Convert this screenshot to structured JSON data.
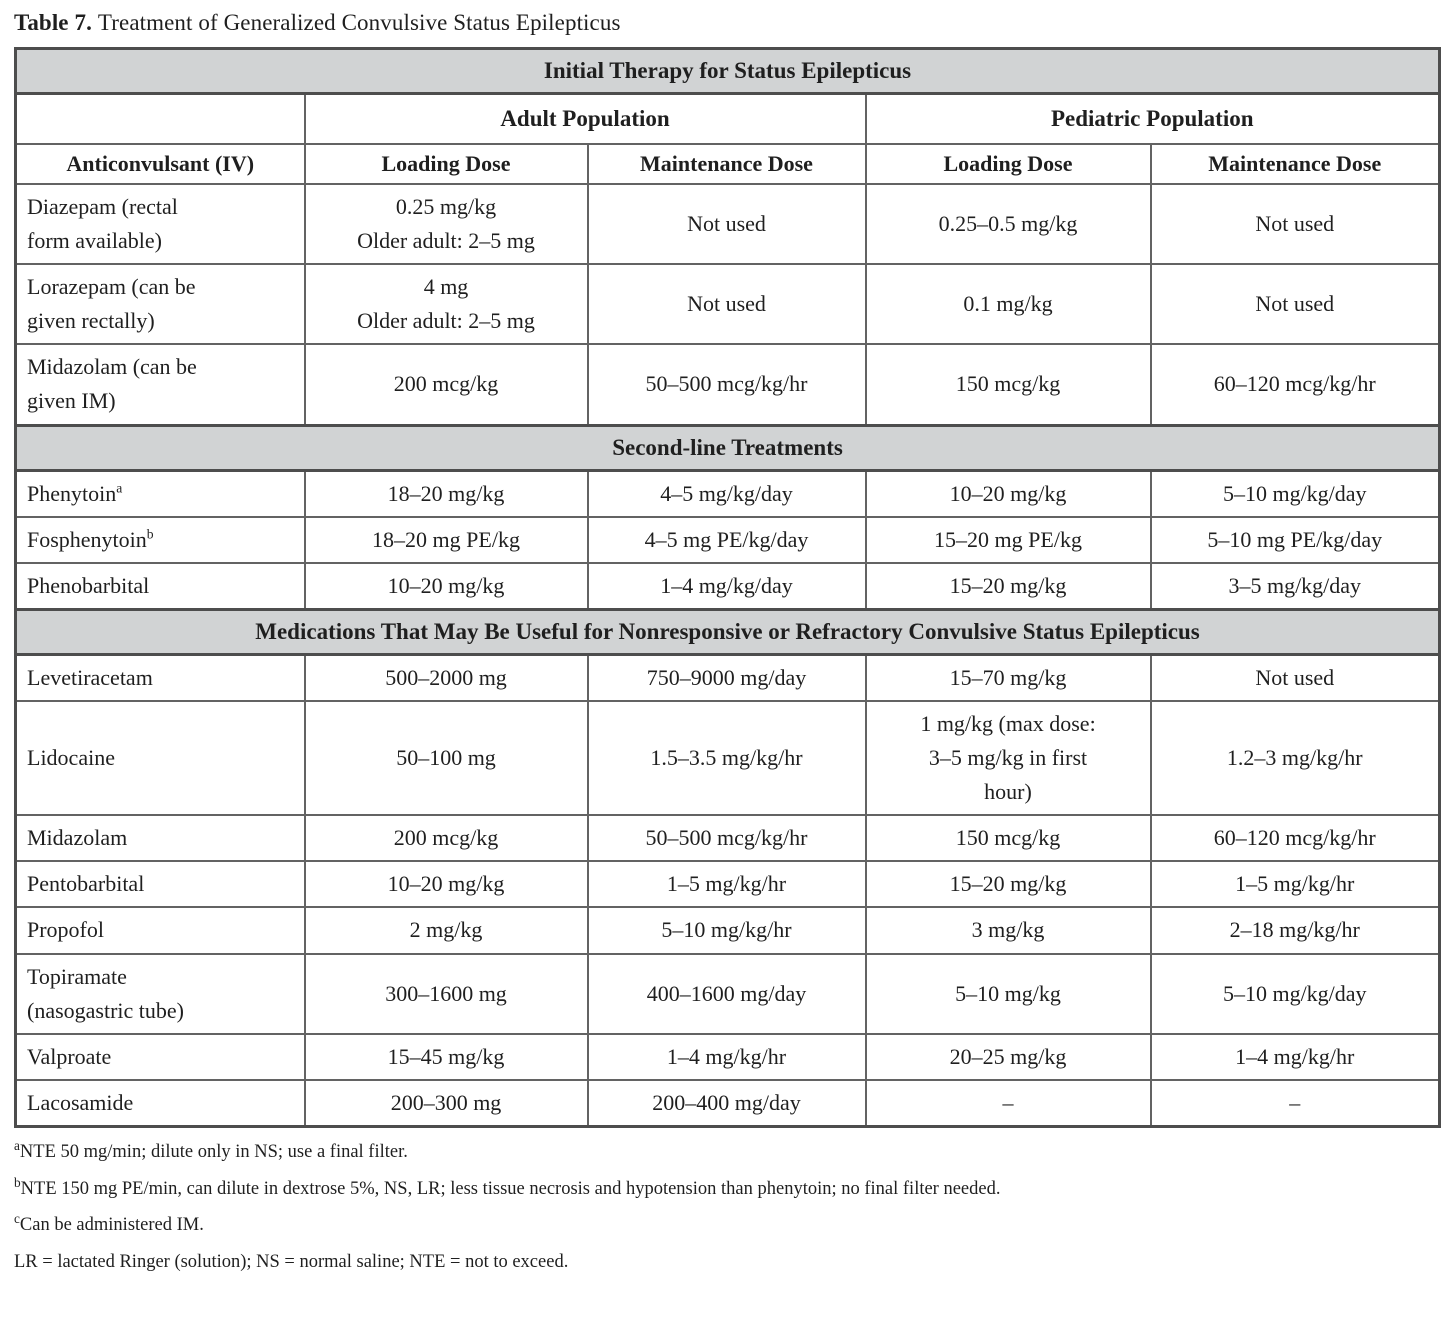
{
  "colors": {
    "band_bg": "#d1d3d4",
    "border_dark": "#4d4d4d",
    "border_inner": "#636363",
    "text": "#1f1f1f"
  },
  "caption": {
    "label": "Table 7.",
    "text": "Treatment of Generalized Convulsive Status Epilepticus"
  },
  "table": {
    "title_band": "Initial Therapy for Status Epilepticus",
    "population_headers": {
      "adult": "Adult Population",
      "pediatric": "Pediatric Population"
    },
    "column_headers": [
      "Anticonvulsant (IV)",
      "Loading Dose",
      "Maintenance Dose",
      "Loading Dose",
      "Maintenance Dose"
    ],
    "sections": [
      {
        "header": "",
        "rows": [
          {
            "drug_lines": [
              "Diazepam (rectal",
              "form available)"
            ],
            "sup": "",
            "cells": [
              [
                "0.25 mg/kg",
                "Older adult: 2–5 mg"
              ],
              [
                "Not used"
              ],
              [
                "0.25–0.5 mg/kg"
              ],
              [
                "Not used"
              ]
            ]
          },
          {
            "drug_lines": [
              "Lorazepam (can be",
              "given rectally)"
            ],
            "sup": "",
            "cells": [
              [
                "4 mg",
                "Older adult: 2–5 mg"
              ],
              [
                "Not used"
              ],
              [
                "0.1 mg/kg"
              ],
              [
                "Not used"
              ]
            ]
          },
          {
            "drug_lines": [
              "Midazolam (can be",
              "given IM)"
            ],
            "sup": "",
            "cells": [
              [
                "200 mcg/kg"
              ],
              [
                "50–500 mcg/kg/hr"
              ],
              [
                "150 mcg/kg"
              ],
              [
                "60–120 mcg/kg/hr"
              ]
            ]
          }
        ]
      },
      {
        "header": "Second-line Treatments",
        "rows": [
          {
            "drug_lines": [
              "Phenytoin"
            ],
            "sup": "a",
            "cells": [
              [
                "18–20 mg/kg"
              ],
              [
                "4–5 mg/kg/day"
              ],
              [
                "10–20 mg/kg"
              ],
              [
                "5–10 mg/kg/day"
              ]
            ]
          },
          {
            "drug_lines": [
              "Fosphenytoin"
            ],
            "sup": "b",
            "cells": [
              [
                "18–20 mg PE/kg"
              ],
              [
                "4–5 mg PE/kg/day"
              ],
              [
                "15–20 mg PE/kg"
              ],
              [
                "5–10 mg PE/kg/day"
              ]
            ]
          },
          {
            "drug_lines": [
              "Phenobarbital"
            ],
            "sup": "",
            "cells": [
              [
                "10–20 mg/kg"
              ],
              [
                "1–4 mg/kg/day"
              ],
              [
                "15–20 mg/kg"
              ],
              [
                "3–5 mg/kg/day"
              ]
            ]
          }
        ]
      },
      {
        "header": "Medications That May Be Useful for Nonresponsive or Refractory Convulsive Status Epilepticus",
        "rows": [
          {
            "drug_lines": [
              "Levetiracetam"
            ],
            "sup": "",
            "cells": [
              [
                "500–2000 mg"
              ],
              [
                "750–9000 mg/day"
              ],
              [
                "15–70 mg/kg"
              ],
              [
                "Not used"
              ]
            ]
          },
          {
            "drug_lines": [
              "Lidocaine"
            ],
            "sup": "",
            "cells": [
              [
                "50–100 mg"
              ],
              [
                "1.5–3.5 mg/kg/hr"
              ],
              [
                "1 mg/kg (max dose:",
                "3–5 mg/kg in first",
                "hour)"
              ],
              [
                "1.2–3 mg/kg/hr"
              ]
            ]
          },
          {
            "drug_lines": [
              "Midazolam"
            ],
            "sup": "",
            "cells": [
              [
                "200 mcg/kg"
              ],
              [
                "50–500 mcg/kg/hr"
              ],
              [
                "150 mcg/kg"
              ],
              [
                "60–120 mcg/kg/hr"
              ]
            ]
          },
          {
            "drug_lines": [
              "Pentobarbital"
            ],
            "sup": "",
            "cells": [
              [
                "10–20 mg/kg"
              ],
              [
                "1–5 mg/kg/hr"
              ],
              [
                "15–20 mg/kg"
              ],
              [
                "1–5 mg/kg/hr"
              ]
            ]
          },
          {
            "drug_lines": [
              "Propofol"
            ],
            "sup": "",
            "cells": [
              [
                "2 mg/kg"
              ],
              [
                "5–10 mg/kg/hr"
              ],
              [
                "3 mg/kg"
              ],
              [
                "2–18 mg/kg/hr"
              ]
            ]
          },
          {
            "drug_lines": [
              "Topiramate",
              "(nasogastric tube)"
            ],
            "sup": "",
            "cells": [
              [
                "300–1600 mg"
              ],
              [
                "400–1600 mg/day"
              ],
              [
                "5–10 mg/kg"
              ],
              [
                "5–10 mg/kg/day"
              ]
            ]
          },
          {
            "drug_lines": [
              "Valproate"
            ],
            "sup": "",
            "cells": [
              [
                "15–45 mg/kg"
              ],
              [
                "1–4 mg/kg/hr"
              ],
              [
                "20–25 mg/kg"
              ],
              [
                "1–4 mg/kg/hr"
              ]
            ]
          },
          {
            "drug_lines": [
              "Lacosamide"
            ],
            "sup": "",
            "cells": [
              [
                "200–300 mg"
              ],
              [
                "200–400 mg/day"
              ],
              [
                "–"
              ],
              [
                "–"
              ]
            ]
          }
        ]
      }
    ]
  },
  "footnotes": [
    {
      "marker": "a",
      "text": "NTE 50 mg/min; dilute only in NS; use a final filter."
    },
    {
      "marker": "b",
      "text": "NTE 150 mg PE/min, can dilute in dextrose 5%, NS, LR; less tissue necrosis and hypotension than phenytoin; no final filter needed."
    },
    {
      "marker": "c",
      "text": "Can be administered IM."
    },
    {
      "marker": "",
      "text": "LR = lactated Ringer (solution); NS = normal saline; NTE = not to exceed."
    }
  ]
}
